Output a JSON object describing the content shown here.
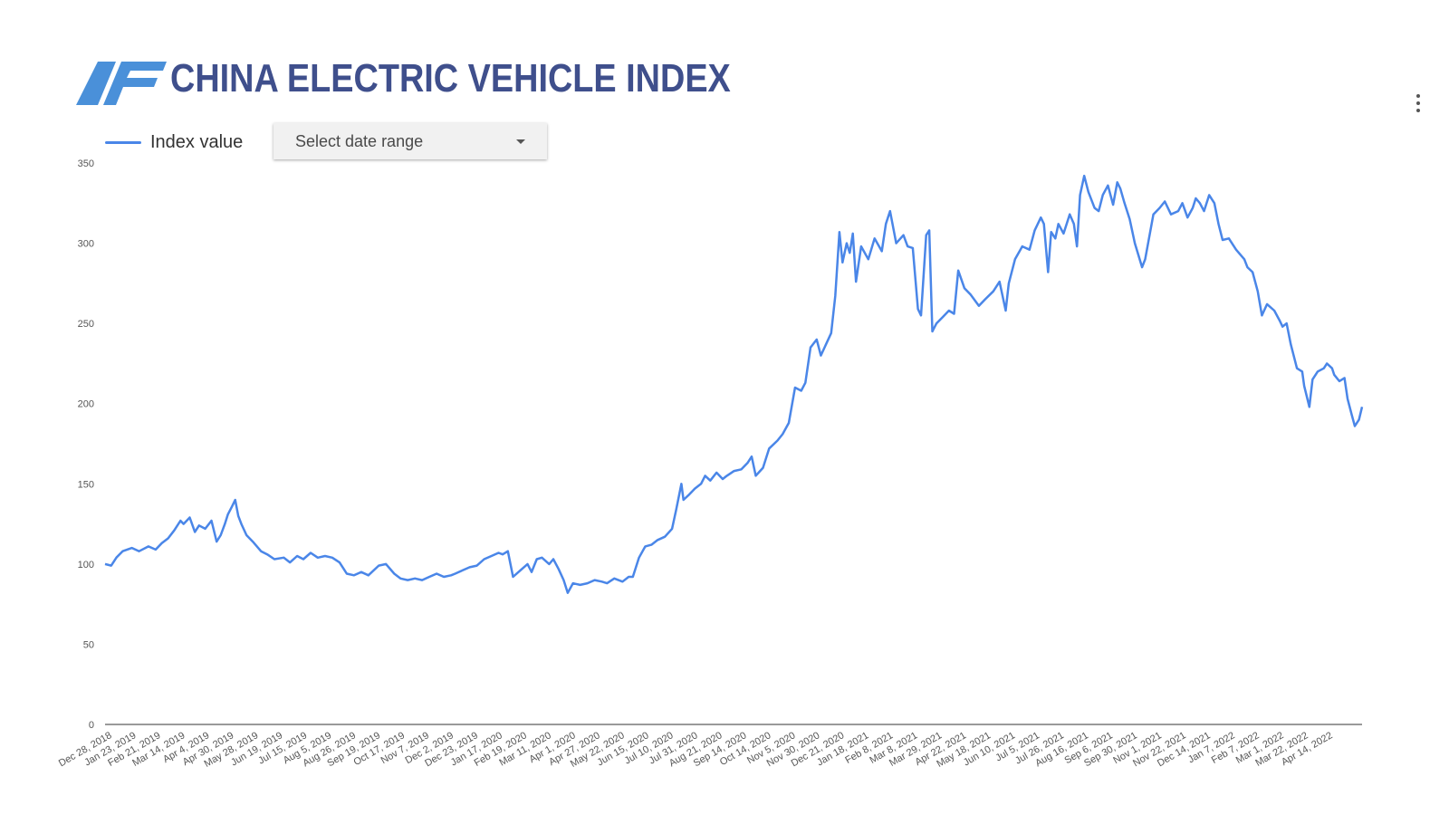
{
  "header": {
    "title": "CHINA ELECTRIC VEHICLE INDEX",
    "logo_color": "#4a90d9"
  },
  "controls": {
    "date_range_label": "Select date range",
    "menu_icon": "more-vert-icon"
  },
  "chart_data": {
    "type": "line",
    "title": "",
    "xlabel": "",
    "ylabel": "",
    "ylim": [
      0,
      350
    ],
    "yticks": [
      0,
      50,
      100,
      150,
      200,
      250,
      300,
      350
    ],
    "grid": false,
    "legend_position": "top-left",
    "line_color": "#4a86e8",
    "x_tick_labels": [
      "Dec 28, 2018",
      "Jan 23, 2019",
      "Feb 21, 2019",
      "Mar 14, 2019",
      "Apr 4, 2019",
      "Apr 30, 2019",
      "May 28, 2019",
      "Jun 19, 2019",
      "Jul 15, 2019",
      "Aug 5, 2019",
      "Aug 26, 2019",
      "Sep 19, 2019",
      "Oct 17, 2019",
      "Nov 7, 2019",
      "Dec 2, 2019",
      "Dec 23, 2019",
      "Jan 17, 2020",
      "Feb 19, 2020",
      "Mar 11, 2020",
      "Apr 1, 2020",
      "Apr 27, 2020",
      "May 22, 2020",
      "Jun 15, 2020",
      "Jul 10, 2020",
      "Jul 31, 2020",
      "Aug 21, 2020",
      "Sep 14, 2020",
      "Oct 14, 2020",
      "Nov 5, 2020",
      "Nov 30, 2020",
      "Dec 21, 2020",
      "Jan 18, 2021",
      "Feb 8, 2021",
      "Mar 8, 2021",
      "Mar 29, 2021",
      "Apr 22, 2021",
      "May 18, 2021",
      "Jun 10, 2021",
      "Jul 5, 2021",
      "Jul 26, 2021",
      "Aug 16, 2021",
      "Sep 6, 2021",
      "Sep 30, 2021",
      "Nov 1, 2021",
      "Nov 22, 2021",
      "Dec 14, 2021",
      "Jan 7, 2022",
      "Feb 7, 2022",
      "Mar 1, 2022",
      "Mar 22, 2022",
      "Apr 14, 2022"
    ],
    "series": [
      {
        "name": "Index value",
        "points": [
          [
            "2018-12-28",
            100
          ],
          [
            "2019-01-03",
            99
          ],
          [
            "2019-01-08",
            104
          ],
          [
            "2019-01-14",
            108
          ],
          [
            "2019-01-23",
            110
          ],
          [
            "2019-01-30",
            108
          ],
          [
            "2019-02-08",
            111
          ],
          [
            "2019-02-15",
            109
          ],
          [
            "2019-02-21",
            113
          ],
          [
            "2019-02-27",
            116
          ],
          [
            "2019-03-05",
            121
          ],
          [
            "2019-03-11",
            127
          ],
          [
            "2019-03-14",
            125
          ],
          [
            "2019-03-20",
            129
          ],
          [
            "2019-03-25",
            120
          ],
          [
            "2019-03-29",
            124
          ],
          [
            "2019-04-04",
            122
          ],
          [
            "2019-04-10",
            127
          ],
          [
            "2019-04-15",
            114
          ],
          [
            "2019-04-19",
            118
          ],
          [
            "2019-04-23",
            125
          ],
          [
            "2019-04-26",
            131
          ],
          [
            "2019-04-30",
            136
          ],
          [
            "2019-05-03",
            140
          ],
          [
            "2019-05-06",
            130
          ],
          [
            "2019-05-09",
            125
          ],
          [
            "2019-05-14",
            118
          ],
          [
            "2019-05-20",
            114
          ],
          [
            "2019-05-28",
            108
          ],
          [
            "2019-06-03",
            106
          ],
          [
            "2019-06-10",
            103
          ],
          [
            "2019-06-19",
            104
          ],
          [
            "2019-06-25",
            101
          ],
          [
            "2019-07-02",
            105
          ],
          [
            "2019-07-08",
            103
          ],
          [
            "2019-07-15",
            107
          ],
          [
            "2019-07-22",
            104
          ],
          [
            "2019-07-29",
            105
          ],
          [
            "2019-08-05",
            104
          ],
          [
            "2019-08-12",
            101
          ],
          [
            "2019-08-19",
            94
          ],
          [
            "2019-08-26",
            93
          ],
          [
            "2019-09-02",
            95
          ],
          [
            "2019-09-09",
            93
          ],
          [
            "2019-09-19",
            99
          ],
          [
            "2019-09-26",
            100
          ],
          [
            "2019-10-04",
            94
          ],
          [
            "2019-10-10",
            91
          ],
          [
            "2019-10-17",
            90
          ],
          [
            "2019-10-24",
            91
          ],
          [
            "2019-10-31",
            90
          ],
          [
            "2019-11-07",
            92
          ],
          [
            "2019-11-14",
            94
          ],
          [
            "2019-11-21",
            92
          ],
          [
            "2019-11-28",
            93
          ],
          [
            "2019-12-02",
            94
          ],
          [
            "2019-12-09",
            96
          ],
          [
            "2019-12-16",
            98
          ],
          [
            "2019-12-23",
            99
          ],
          [
            "2019-12-30",
            103
          ],
          [
            "2020-01-06",
            105
          ],
          [
            "2020-01-13",
            107
          ],
          [
            "2020-01-17",
            106
          ],
          [
            "2020-01-22",
            108
          ],
          [
            "2020-01-27",
            92
          ],
          [
            "2020-02-03",
            96
          ],
          [
            "2020-02-10",
            100
          ],
          [
            "2020-02-14",
            95
          ],
          [
            "2020-02-19",
            103
          ],
          [
            "2020-02-24",
            104
          ],
          [
            "2020-03-02",
            100
          ],
          [
            "2020-03-06",
            103
          ],
          [
            "2020-03-11",
            97
          ],
          [
            "2020-03-16",
            90
          ],
          [
            "2020-03-20",
            82
          ],
          [
            "2020-03-25",
            88
          ],
          [
            "2020-04-01",
            87
          ],
          [
            "2020-04-08",
            88
          ],
          [
            "2020-04-15",
            90
          ],
          [
            "2020-04-22",
            89
          ],
          [
            "2020-04-27",
            88
          ],
          [
            "2020-05-04",
            91
          ],
          [
            "2020-05-12",
            89
          ],
          [
            "2020-05-18",
            92
          ],
          [
            "2020-05-22",
            92
          ],
          [
            "2020-05-28",
            104
          ],
          [
            "2020-06-03",
            111
          ],
          [
            "2020-06-09",
            112
          ],
          [
            "2020-06-15",
            115
          ],
          [
            "2020-06-22",
            117
          ],
          [
            "2020-06-29",
            122
          ],
          [
            "2020-07-03",
            134
          ],
          [
            "2020-07-08",
            150
          ],
          [
            "2020-07-10",
            140
          ],
          [
            "2020-07-15",
            143
          ],
          [
            "2020-07-21",
            147
          ],
          [
            "2020-07-27",
            150
          ],
          [
            "2020-07-31",
            155
          ],
          [
            "2020-08-05",
            152
          ],
          [
            "2020-08-11",
            157
          ],
          [
            "2020-08-17",
            153
          ],
          [
            "2020-08-21",
            155
          ],
          [
            "2020-08-28",
            158
          ],
          [
            "2020-09-04",
            159
          ],
          [
            "2020-09-10",
            163
          ],
          [
            "2020-09-14",
            167
          ],
          [
            "2020-09-18",
            155
          ],
          [
            "2020-09-25",
            160
          ],
          [
            "2020-10-01",
            172
          ],
          [
            "2020-10-09",
            177
          ],
          [
            "2020-10-14",
            181
          ],
          [
            "2020-10-20",
            188
          ],
          [
            "2020-10-26",
            210
          ],
          [
            "2020-11-01",
            208
          ],
          [
            "2020-11-05",
            213
          ],
          [
            "2020-11-10",
            235
          ],
          [
            "2020-11-16",
            240
          ],
          [
            "2020-11-20",
            230
          ],
          [
            "2020-11-25",
            237
          ],
          [
            "2020-11-30",
            244
          ],
          [
            "2020-12-04",
            267
          ],
          [
            "2020-12-08",
            307
          ],
          [
            "2020-12-11",
            288
          ],
          [
            "2020-12-15",
            300
          ],
          [
            "2020-12-18",
            294
          ],
          [
            "2020-12-21",
            306
          ],
          [
            "2020-12-24",
            276
          ],
          [
            "2020-12-29",
            298
          ],
          [
            "2021-01-05",
            290
          ],
          [
            "2021-01-11",
            303
          ],
          [
            "2021-01-18",
            295
          ],
          [
            "2021-01-22",
            312
          ],
          [
            "2021-01-26",
            320
          ],
          [
            "2021-02-01",
            300
          ],
          [
            "2021-02-08",
            305
          ],
          [
            "2021-02-12",
            298
          ],
          [
            "2021-02-17",
            297
          ],
          [
            "2021-02-22",
            259
          ],
          [
            "2021-02-25",
            255
          ],
          [
            "2021-03-02",
            305
          ],
          [
            "2021-03-05",
            308
          ],
          [
            "2021-03-08",
            245
          ],
          [
            "2021-03-12",
            250
          ],
          [
            "2021-03-18",
            254
          ],
          [
            "2021-03-24",
            258
          ],
          [
            "2021-03-29",
            256
          ],
          [
            "2021-04-02",
            283
          ],
          [
            "2021-04-08",
            272
          ],
          [
            "2021-04-14",
            268
          ],
          [
            "2021-04-22",
            261
          ],
          [
            "2021-04-28",
            265
          ],
          [
            "2021-05-06",
            270
          ],
          [
            "2021-05-12",
            276
          ],
          [
            "2021-05-18",
            258
          ],
          [
            "2021-05-21",
            275
          ],
          [
            "2021-05-27",
            290
          ],
          [
            "2021-06-03",
            298
          ],
          [
            "2021-06-10",
            296
          ],
          [
            "2021-06-15",
            308
          ],
          [
            "2021-06-21",
            316
          ],
          [
            "2021-06-24",
            312
          ],
          [
            "2021-06-28",
            282
          ],
          [
            "2021-07-01",
            307
          ],
          [
            "2021-07-05",
            303
          ],
          [
            "2021-07-08",
            312
          ],
          [
            "2021-07-13",
            306
          ],
          [
            "2021-07-19",
            318
          ],
          [
            "2021-07-23",
            312
          ],
          [
            "2021-07-26",
            298
          ],
          [
            "2021-07-29",
            330
          ],
          [
            "2021-08-02",
            342
          ],
          [
            "2021-08-06",
            332
          ],
          [
            "2021-08-12",
            322
          ],
          [
            "2021-08-16",
            320
          ],
          [
            "2021-08-20",
            330
          ],
          [
            "2021-08-25",
            336
          ],
          [
            "2021-08-30",
            324
          ],
          [
            "2021-09-03",
            338
          ],
          [
            "2021-09-06",
            334
          ],
          [
            "2021-09-10",
            325
          ],
          [
            "2021-09-15",
            315
          ],
          [
            "2021-09-20",
            300
          ],
          [
            "2021-09-27",
            285
          ],
          [
            "2021-09-30",
            290
          ],
          [
            "2021-10-08",
            318
          ],
          [
            "2021-10-14",
            322
          ],
          [
            "2021-10-19",
            326
          ],
          [
            "2021-10-25",
            318
          ],
          [
            "2021-11-01",
            320
          ],
          [
            "2021-11-05",
            325
          ],
          [
            "2021-11-10",
            316
          ],
          [
            "2021-11-15",
            322
          ],
          [
            "2021-11-18",
            328
          ],
          [
            "2021-11-22",
            325
          ],
          [
            "2021-11-26",
            320
          ],
          [
            "2021-12-01",
            330
          ],
          [
            "2021-12-06",
            325
          ],
          [
            "2021-12-10",
            312
          ],
          [
            "2021-12-14",
            302
          ],
          [
            "2021-12-20",
            303
          ],
          [
            "2021-12-27",
            296
          ],
          [
            "2022-01-04",
            290
          ],
          [
            "2022-01-07",
            285
          ],
          [
            "2022-01-12",
            282
          ],
          [
            "2022-01-17",
            270
          ],
          [
            "2022-01-21",
            255
          ],
          [
            "2022-01-26",
            262
          ],
          [
            "2022-02-02",
            258
          ],
          [
            "2022-02-07",
            252
          ],
          [
            "2022-02-10",
            248
          ],
          [
            "2022-02-14",
            250
          ],
          [
            "2022-02-18",
            237
          ],
          [
            "2022-02-24",
            222
          ],
          [
            "2022-03-01",
            220
          ],
          [
            "2022-03-03",
            211
          ],
          [
            "2022-03-08",
            198
          ],
          [
            "2022-03-11",
            215
          ],
          [
            "2022-03-16",
            220
          ],
          [
            "2022-03-22",
            222
          ],
          [
            "2022-03-25",
            225
          ],
          [
            "2022-03-30",
            222
          ],
          [
            "2022-04-01",
            218
          ],
          [
            "2022-04-06",
            214
          ],
          [
            "2022-04-11",
            216
          ],
          [
            "2022-04-14",
            203
          ],
          [
            "2022-04-18",
            193
          ],
          [
            "2022-04-21",
            186
          ],
          [
            "2022-04-25",
            190
          ],
          [
            "2022-04-28",
            198
          ]
        ]
      }
    ]
  }
}
